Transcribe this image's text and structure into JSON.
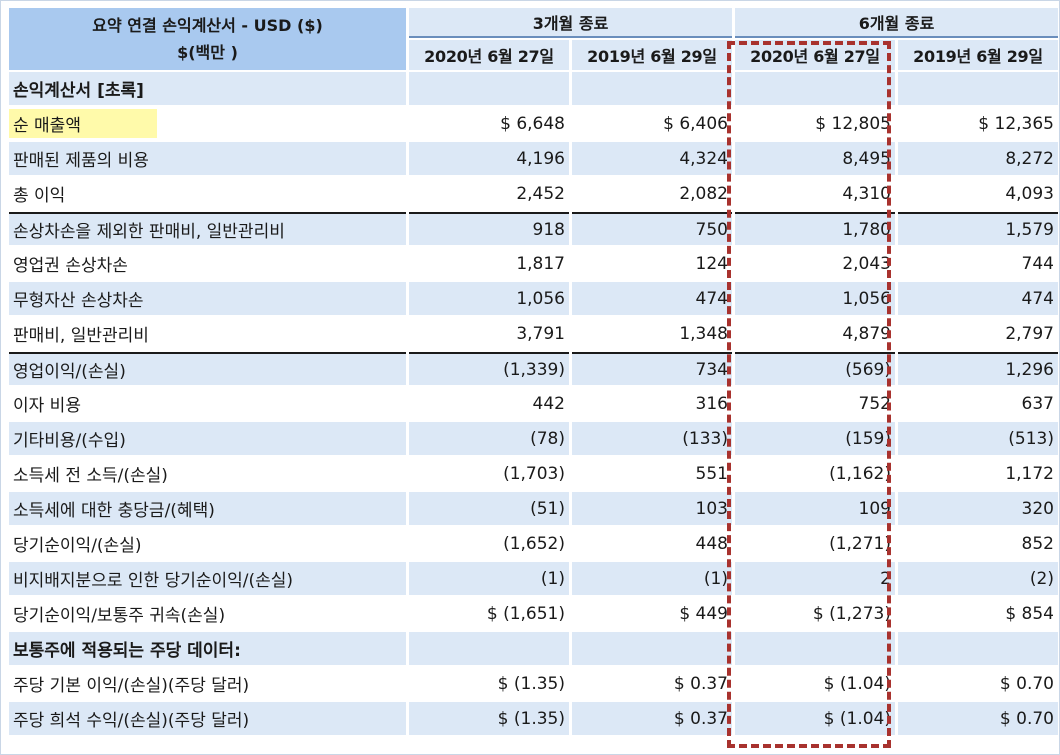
{
  "header": {
    "title_line1": "요약 연결 손익계산서 - USD ($)",
    "title_line2": "$(백만 )",
    "period_3m": "3개월 종료",
    "period_6m": "6개월 종료",
    "dates": [
      "2020년 6월 27일",
      "2019년 6월 29일",
      "2020년 6월 27일",
      "2019년 6월 29일"
    ]
  },
  "rows": [
    {
      "label": "손익계산서 [초록]",
      "values": [
        "",
        "",
        "",
        ""
      ]
    },
    {
      "label": "순 매출액",
      "values": [
        "$ 6,648",
        "$ 6,406",
        "$ 12,805",
        "$ 12,365"
      ]
    },
    {
      "label": "판매된 제품의 비용",
      "values": [
        "4,196",
        "4,324",
        "8,495",
        "8,272"
      ]
    },
    {
      "label": "총 이익",
      "values": [
        "2,452",
        "2,082",
        "4,310",
        "4,093"
      ]
    },
    {
      "label": "손상차손을 제외한 판매비, 일반관리비",
      "values": [
        "918",
        "750",
        "1,780",
        "1,579"
      ]
    },
    {
      "label": "영업권 손상차손",
      "values": [
        "1,817",
        "124",
        "2,043",
        "744"
      ]
    },
    {
      "label": "무형자산 손상차손",
      "values": [
        "1,056",
        "474",
        "1,056",
        "474"
      ]
    },
    {
      "label": "판매비, 일반관리비",
      "values": [
        "3,791",
        "1,348",
        "4,879",
        "2,797"
      ]
    },
    {
      "label": "영업이익/(손실)",
      "values": [
        "(1,339)",
        "734",
        "(569)",
        "1,296"
      ]
    },
    {
      "label": "이자 비용",
      "values": [
        "442",
        "316",
        "752",
        "637"
      ]
    },
    {
      "label": "기타비용/(수입)",
      "values": [
        "(78)",
        "(133)",
        "(159)",
        "(513)"
      ]
    },
    {
      "label": "소득세 전 소득/(손실)",
      "values": [
        "(1,703)",
        "551",
        "(1,162)",
        "1,172"
      ]
    },
    {
      "label": "소득세에 대한 충당금/(혜택)",
      "values": [
        "(51)",
        "103",
        "109",
        "320"
      ]
    },
    {
      "label": "당기순이익/(손실)",
      "values": [
        "(1,652)",
        "448",
        "(1,271)",
        "852"
      ]
    },
    {
      "label": "비지배지분으로 인한 당기순이익/(손실)",
      "values": [
        "(1)",
        "(1)",
        "2",
        "(2)"
      ]
    },
    {
      "label": "당기순이익/보통주 귀속(손실)",
      "values": [
        "$ (1,651)",
        "$ 449",
        "$ (1,273)",
        "$ 854"
      ]
    },
    {
      "label": "보통주에 적용되는 주당 데이터:",
      "values": [
        "",
        "",
        "",
        ""
      ]
    },
    {
      "label": "주당 기본 이익/(손실)(주당 달러)",
      "values": [
        "$ (1.35)",
        "$ 0.37",
        "$ (1.04)",
        "$ 0.70"
      ]
    },
    {
      "label": "주당 희석 수익/(손실)(주당 달러)",
      "values": [
        "$ (1.35)",
        "$ 0.37",
        "$ (1.04)",
        "$ 0.70"
      ]
    }
  ],
  "colors": {
    "header_bg": "#a9c9ef",
    "row_shade": "#dce8f6",
    "highlight_yellow": "#fffaaa",
    "dashed_box": "#a8322e"
  }
}
